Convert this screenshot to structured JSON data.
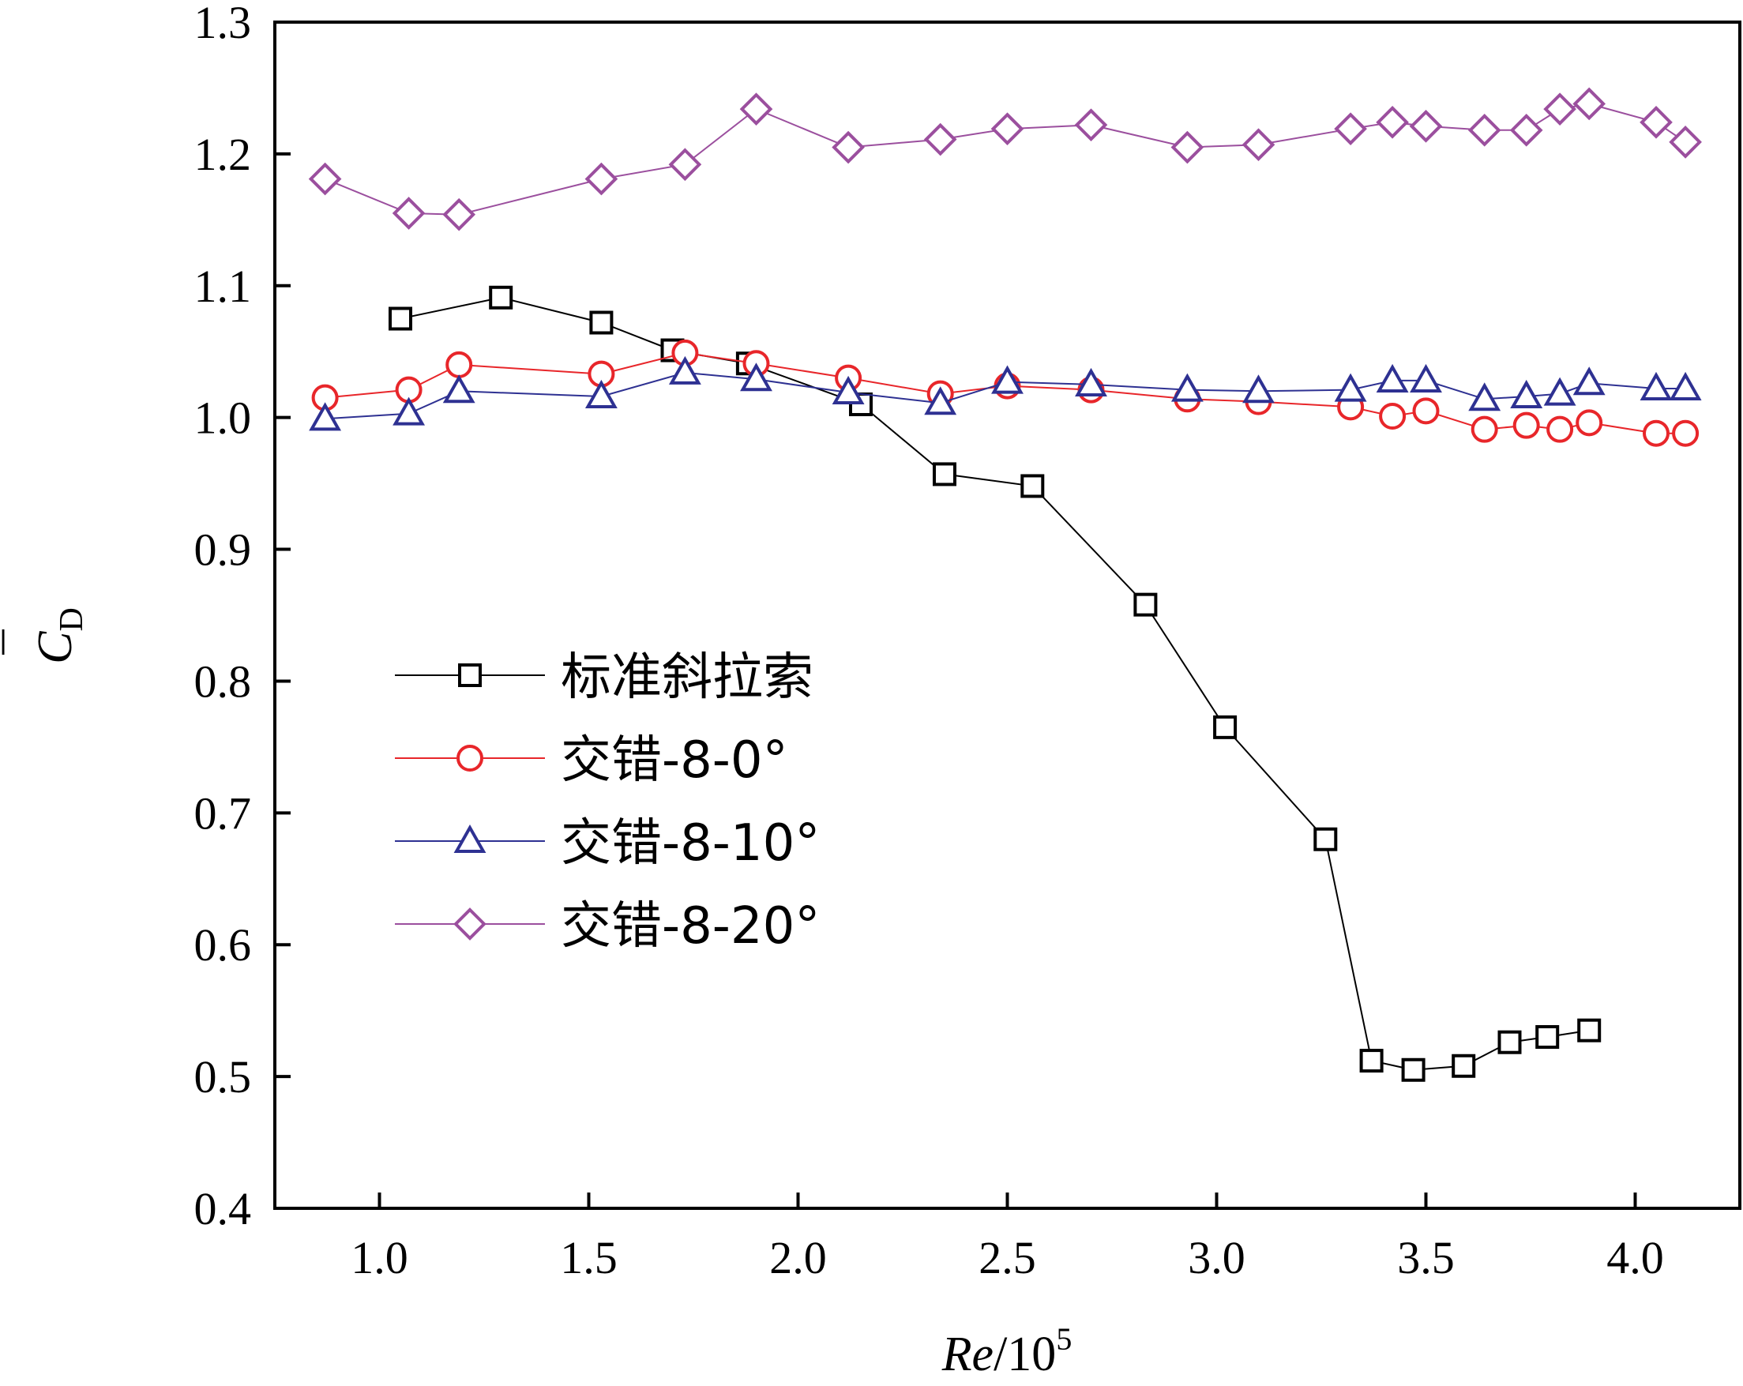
{
  "chart_data": {
    "type": "line",
    "xlabel": {
      "main": "Re",
      "sep": "/10",
      "exp": "5"
    },
    "ylabel": {
      "main": "C",
      "sub": "D",
      "accent": "¯"
    },
    "xlim": [
      0.75,
      4.25
    ],
    "ylim": [
      0.4,
      1.3
    ],
    "x_ticks": [
      1.0,
      1.5,
      2.0,
      2.5,
      3.0,
      3.5,
      4.0
    ],
    "x_tick_labels": [
      "1.0",
      "1.5",
      "2.0",
      "2.5",
      "3.0",
      "3.5",
      "4.0"
    ],
    "y_ticks": [
      0.4,
      0.5,
      0.6,
      0.7,
      0.8,
      0.9,
      1.0,
      1.1,
      1.2,
      1.3
    ],
    "y_tick_labels": [
      "0.4",
      "0.5",
      "0.6",
      "0.7",
      "0.8",
      "0.9",
      "1.0",
      "1.1",
      "1.2",
      "1.3"
    ],
    "grid": false,
    "legend_position": "middle-left",
    "series": [
      {
        "name": "标准斜拉索",
        "marker": "square",
        "color": "#000000",
        "x": [
          1.05,
          1.29,
          1.53,
          1.7,
          1.88,
          2.15,
          2.35,
          2.56,
          2.83,
          3.02,
          3.26,
          3.37,
          3.47,
          3.59,
          3.7,
          3.79,
          3.89
        ],
        "y": [
          1.075,
          1.091,
          1.072,
          1.051,
          1.041,
          1.01,
          0.957,
          0.948,
          0.858,
          0.765,
          0.68,
          0.512,
          0.505,
          0.508,
          0.526,
          0.53,
          0.535
        ]
      },
      {
        "name": "交错-8-0°",
        "marker": "circle",
        "color": "#e8262a",
        "x": [
          0.87,
          1.07,
          1.19,
          1.53,
          1.73,
          1.9,
          2.12,
          2.34,
          2.5,
          2.7,
          2.93,
          3.1,
          3.32,
          3.42,
          3.5,
          3.64,
          3.74,
          3.82,
          3.89,
          4.05,
          4.12
        ],
        "y": [
          1.015,
          1.021,
          1.04,
          1.033,
          1.049,
          1.041,
          1.03,
          1.018,
          1.024,
          1.021,
          1.014,
          1.012,
          1.008,
          1.001,
          1.005,
          0.991,
          0.994,
          0.991,
          0.996,
          0.988,
          0.988
        ]
      },
      {
        "name": "交错-8-10°",
        "marker": "triangle",
        "color": "#2e3192",
        "x": [
          0.87,
          1.07,
          1.19,
          1.53,
          1.73,
          1.9,
          2.12,
          2.34,
          2.5,
          2.7,
          2.93,
          3.1,
          3.32,
          3.42,
          3.5,
          3.64,
          3.74,
          3.82,
          3.89,
          4.05,
          4.12
        ],
        "y": [
          0.999,
          1.003,
          1.02,
          1.016,
          1.034,
          1.029,
          1.019,
          1.011,
          1.027,
          1.025,
          1.021,
          1.02,
          1.021,
          1.028,
          1.028,
          1.014,
          1.016,
          1.018,
          1.026,
          1.022,
          1.022
        ]
      },
      {
        "name": "交错-8-20°",
        "marker": "diamond",
        "color": "#9b4f9e",
        "x": [
          0.87,
          1.07,
          1.19,
          1.53,
          1.73,
          1.9,
          2.12,
          2.34,
          2.5,
          2.7,
          2.93,
          3.1,
          3.32,
          3.42,
          3.5,
          3.64,
          3.74,
          3.82,
          3.89,
          4.05,
          4.12
        ],
        "y": [
          1.181,
          1.155,
          1.154,
          1.181,
          1.192,
          1.234,
          1.205,
          1.211,
          1.219,
          1.222,
          1.205,
          1.207,
          1.219,
          1.224,
          1.221,
          1.218,
          1.218,
          1.234,
          1.238,
          1.224,
          1.209
        ]
      }
    ]
  }
}
